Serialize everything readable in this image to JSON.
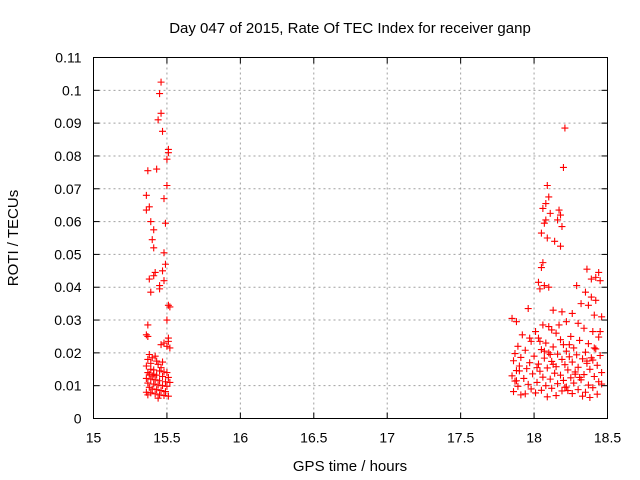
{
  "chart_data": {
    "type": "scatter",
    "title": "Day 047 of 2015, Rate Of TEC Index for receiver ganp",
    "xlabel": "GPS time / hours",
    "ylabel": "ROTI / TECUs",
    "xlim": [
      15,
      18.5
    ],
    "ylim": [
      0,
      0.11
    ],
    "xticks": [
      15,
      15.5,
      16,
      16.5,
      17,
      17.5,
      18,
      18.5
    ],
    "xtick_labels": [
      "15",
      "15.5",
      "16",
      "16.5",
      "17",
      "17.5",
      "18",
      "18.5"
    ],
    "yticks": [
      0,
      0.01,
      0.02,
      0.03,
      0.04,
      0.05,
      0.06,
      0.07,
      0.08,
      0.09,
      0.1,
      0.11
    ],
    "ytick_labels": [
      "0",
      "0.01",
      "0.02",
      "0.03",
      "0.04",
      "0.05",
      "0.06",
      "0.07",
      "0.08",
      "0.09",
      "0.1",
      "0.11"
    ],
    "grid": true,
    "marker": "+",
    "color": "#ff0000",
    "series": [
      {
        "name": "ROTI",
        "points": [
          [
            15.46,
            0.1025
          ],
          [
            15.45,
            0.099
          ],
          [
            15.46,
            0.093
          ],
          [
            15.44,
            0.091
          ],
          [
            15.47,
            0.0875
          ],
          [
            15.51,
            0.082
          ],
          [
            15.51,
            0.081
          ],
          [
            15.5,
            0.079
          ],
          [
            15.43,
            0.076
          ],
          [
            15.37,
            0.0755
          ],
          [
            15.5,
            0.071
          ],
          [
            15.36,
            0.068
          ],
          [
            15.48,
            0.067
          ],
          [
            15.38,
            0.0645
          ],
          [
            15.36,
            0.0635
          ],
          [
            15.39,
            0.06
          ],
          [
            15.49,
            0.0595
          ],
          [
            15.41,
            0.0575
          ],
          [
            15.4,
            0.0545
          ],
          [
            15.41,
            0.052
          ],
          [
            15.48,
            0.0505
          ],
          [
            15.49,
            0.047
          ],
          [
            15.47,
            0.045
          ],
          [
            15.42,
            0.0445
          ],
          [
            15.41,
            0.0435
          ],
          [
            15.38,
            0.0425
          ],
          [
            15.48,
            0.042
          ],
          [
            15.45,
            0.0405
          ],
          [
            15.45,
            0.0395
          ],
          [
            15.39,
            0.0385
          ],
          [
            15.51,
            0.0345
          ],
          [
            15.52,
            0.034
          ],
          [
            15.5,
            0.03
          ],
          [
            15.37,
            0.0285
          ],
          [
            15.36,
            0.0255
          ],
          [
            15.37,
            0.025
          ],
          [
            15.51,
            0.0245
          ],
          [
            15.51,
            0.0235
          ],
          [
            15.48,
            0.023
          ],
          [
            15.5,
            0.022
          ],
          [
            15.46,
            0.0225
          ],
          [
            15.52,
            0.0215
          ],
          [
            15.38,
            0.0195
          ],
          [
            15.4,
            0.0185
          ],
          [
            15.42,
            0.019
          ],
          [
            15.37,
            0.018
          ],
          [
            15.43,
            0.0175
          ],
          [
            15.44,
            0.0165
          ],
          [
            15.36,
            0.016
          ],
          [
            15.39,
            0.015
          ],
          [
            15.41,
            0.0148
          ],
          [
            15.37,
            0.014
          ],
          [
            15.45,
            0.0145
          ],
          [
            15.48,
            0.0142
          ],
          [
            15.5,
            0.014
          ],
          [
            15.38,
            0.0135
          ],
          [
            15.4,
            0.013
          ],
          [
            15.43,
            0.0132
          ],
          [
            15.47,
            0.0128
          ],
          [
            15.51,
            0.0125
          ],
          [
            15.36,
            0.0122
          ],
          [
            15.39,
            0.012
          ],
          [
            15.42,
            0.0118
          ],
          [
            15.45,
            0.0115
          ],
          [
            15.49,
            0.0112
          ],
          [
            15.52,
            0.011
          ],
          [
            15.37,
            0.0108
          ],
          [
            15.41,
            0.0105
          ],
          [
            15.44,
            0.0102
          ],
          [
            15.47,
            0.01
          ],
          [
            15.5,
            0.0098
          ],
          [
            15.38,
            0.0095
          ],
          [
            15.4,
            0.009
          ],
          [
            15.43,
            0.0088
          ],
          [
            15.46,
            0.0085
          ],
          [
            15.49,
            0.0082
          ],
          [
            15.36,
            0.008
          ],
          [
            15.39,
            0.0078
          ],
          [
            15.42,
            0.0075
          ],
          [
            15.45,
            0.0072
          ],
          [
            15.48,
            0.007
          ],
          [
            15.51,
            0.0068
          ],
          [
            15.37,
            0.0072
          ],
          [
            15.44,
            0.0062
          ],
          [
            15.41,
            0.0135
          ],
          [
            15.46,
            0.0155
          ],
          [
            15.39,
            0.0168
          ],
          [
            15.47,
            0.0172
          ],
          [
            18.21,
            0.0885
          ],
          [
            18.2,
            0.0765
          ],
          [
            18.09,
            0.071
          ],
          [
            18.1,
            0.0675
          ],
          [
            18.08,
            0.0655
          ],
          [
            18.06,
            0.064
          ],
          [
            18.11,
            0.0625
          ],
          [
            18.17,
            0.0635
          ],
          [
            18.18,
            0.062
          ],
          [
            18.08,
            0.0605
          ],
          [
            18.07,
            0.0595
          ],
          [
            18.16,
            0.0605
          ],
          [
            18.19,
            0.0585
          ],
          [
            18.05,
            0.0565
          ],
          [
            18.09,
            0.055
          ],
          [
            18.14,
            0.054
          ],
          [
            18.18,
            0.0525
          ],
          [
            18.06,
            0.0475
          ],
          [
            18.05,
            0.046
          ],
          [
            18.36,
            0.0455
          ],
          [
            18.44,
            0.0445
          ],
          [
            18.42,
            0.043
          ],
          [
            18.45,
            0.042
          ],
          [
            18.39,
            0.0425
          ],
          [
            18.03,
            0.0415
          ],
          [
            18.07,
            0.0405
          ],
          [
            18.1,
            0.04
          ],
          [
            18.04,
            0.0395
          ],
          [
            18.29,
            0.0405
          ],
          [
            18.35,
            0.0385
          ],
          [
            18.39,
            0.037
          ],
          [
            18.42,
            0.036
          ],
          [
            18.32,
            0.035
          ],
          [
            18.37,
            0.0345
          ],
          [
            18.13,
            0.033
          ],
          [
            17.96,
            0.0335
          ],
          [
            18.19,
            0.0325
          ],
          [
            18.26,
            0.032
          ],
          [
            18.41,
            0.0315
          ],
          [
            18.46,
            0.031
          ],
          [
            17.85,
            0.0305
          ],
          [
            17.88,
            0.0295
          ],
          [
            18.22,
            0.0295
          ],
          [
            18.3,
            0.029
          ],
          [
            18.06,
            0.0285
          ],
          [
            18.1,
            0.028
          ],
          [
            18.34,
            0.0275
          ],
          [
            18.12,
            0.027
          ],
          [
            18.4,
            0.0265
          ],
          [
            18.01,
            0.0265
          ],
          [
            18.15,
            0.026
          ],
          [
            17.92,
            0.0255
          ],
          [
            18.25,
            0.025
          ],
          [
            18.44,
            0.0248
          ],
          [
            18.03,
            0.0245
          ],
          [
            18.18,
            0.024
          ],
          [
            18.31,
            0.0238
          ],
          [
            17.98,
            0.0235
          ],
          [
            18.08,
            0.023
          ],
          [
            18.37,
            0.0228
          ],
          [
            18.2,
            0.0225
          ],
          [
            17.89,
            0.022
          ],
          [
            18.13,
            0.0218
          ],
          [
            18.27,
            0.0215
          ],
          [
            18.42,
            0.0212
          ],
          [
            18.05,
            0.021
          ],
          [
            17.94,
            0.0208
          ],
          [
            18.22,
            0.0205
          ],
          [
            18.35,
            0.0202
          ],
          [
            18.1,
            0.02
          ],
          [
            17.87,
            0.0198
          ],
          [
            18.16,
            0.0196
          ],
          [
            18.29,
            0.0194
          ],
          [
            18.45,
            0.0192
          ],
          [
            18.0,
            0.019
          ],
          [
            18.24,
            0.0188
          ],
          [
            17.91,
            0.0186
          ],
          [
            18.07,
            0.0184
          ],
          [
            18.33,
            0.0182
          ],
          [
            18.19,
            0.018
          ],
          [
            18.4,
            0.0178
          ],
          [
            17.86,
            0.0176
          ],
          [
            18.12,
            0.0174
          ],
          [
            18.26,
            0.0172
          ],
          [
            17.97,
            0.017
          ],
          [
            18.36,
            0.0168
          ],
          [
            18.03,
            0.0166
          ],
          [
            18.21,
            0.0164
          ],
          [
            18.43,
            0.0162
          ],
          [
            17.9,
            0.016
          ],
          [
            18.15,
            0.0158
          ],
          [
            18.3,
            0.0156
          ],
          [
            18.09,
            0.0154
          ],
          [
            17.95,
            0.0152
          ],
          [
            18.38,
            0.015
          ],
          [
            18.23,
            0.0148
          ],
          [
            17.88,
            0.0146
          ],
          [
            18.04,
            0.0144
          ],
          [
            18.28,
            0.0142
          ],
          [
            18.46,
            0.014
          ],
          [
            18.14,
            0.0138
          ],
          [
            17.99,
            0.0136
          ],
          [
            18.34,
            0.0134
          ],
          [
            18.18,
            0.0132
          ],
          [
            17.85,
            0.013
          ],
          [
            18.41,
            0.0128
          ],
          [
            18.06,
            0.0126
          ],
          [
            18.25,
            0.0124
          ],
          [
            17.93,
            0.0122
          ],
          [
            18.11,
            0.012
          ],
          [
            18.32,
            0.0118
          ],
          [
            18.2,
            0.0116
          ],
          [
            17.87,
            0.0114
          ],
          [
            18.44,
            0.0112
          ],
          [
            18.02,
            0.011
          ],
          [
            18.27,
            0.0108
          ],
          [
            18.16,
            0.0106
          ],
          [
            17.96,
            0.0104
          ],
          [
            18.37,
            0.0102
          ],
          [
            18.08,
            0.01
          ],
          [
            17.89,
            0.0098
          ],
          [
            18.22,
            0.0096
          ],
          [
            18.4,
            0.0094
          ],
          [
            18.12,
            0.0092
          ],
          [
            17.98,
            0.009
          ],
          [
            18.3,
            0.0088
          ],
          [
            18.05,
            0.0086
          ],
          [
            18.19,
            0.0084
          ],
          [
            17.86,
            0.0082
          ],
          [
            18.35,
            0.008
          ],
          [
            18.01,
            0.0078
          ],
          [
            18.26,
            0.0076
          ],
          [
            18.43,
            0.0074
          ],
          [
            17.91,
            0.0072
          ],
          [
            18.15,
            0.007
          ],
          [
            18.33,
            0.0068
          ],
          [
            18.09,
            0.0066
          ],
          [
            18.38,
            0.0064
          ],
          [
            17.94,
            0.0075
          ],
          [
            18.23,
            0.0085
          ],
          [
            18.46,
            0.0105
          ],
          [
            18.31,
            0.0125
          ],
          [
            17.9,
            0.0145
          ],
          [
            18.13,
            0.0165
          ],
          [
            18.39,
            0.0185
          ],
          [
            18.07,
            0.0205
          ],
          [
            18.24,
            0.0225
          ],
          [
            17.97,
            0.0245
          ],
          [
            18.45,
            0.0265
          ],
          [
            18.17,
            0.0285
          ],
          [
            18.02,
            0.0155
          ],
          [
            18.28,
            0.0135
          ],
          [
            18.36,
            0.0175
          ],
          [
            17.88,
            0.0115
          ],
          [
            18.11,
            0.0195
          ],
          [
            18.41,
            0.0215
          ],
          [
            18.21,
            0.0095
          ],
          [
            18.04,
            0.0235
          ]
        ]
      }
    ]
  }
}
